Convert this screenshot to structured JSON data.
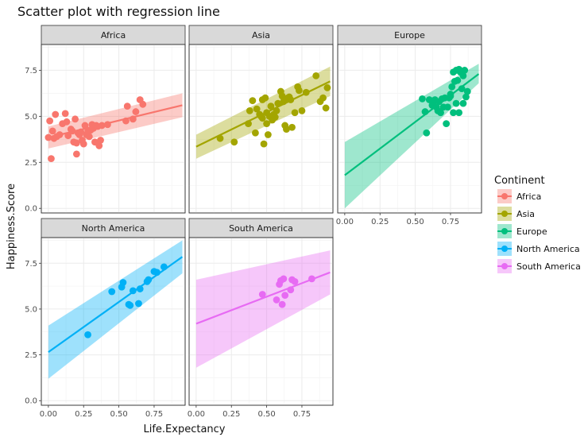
{
  "chart_data": {
    "type": "scatter",
    "title": "Scatter plot with regression line",
    "xlabel": "Life.Expectancy",
    "ylabel": "Happiness.Score",
    "xlim": [
      -0.05,
      0.97
    ],
    "ylim": [
      -0.25,
      8.9
    ],
    "x_ticks": [
      0.0,
      0.25,
      0.5,
      0.75
    ],
    "x_tick_labels": [
      "0.00",
      "0.25",
      "0.50",
      "0.75"
    ],
    "y_ticks": [
      0.0,
      2.5,
      5.0,
      7.5
    ],
    "y_tick_labels": [
      "0.0",
      "2.5",
      "5.0",
      "7.5"
    ],
    "grid": true,
    "legend": {
      "title": "Continent",
      "placement": "right"
    },
    "facets": [
      {
        "name": "Africa",
        "color": "#F8766D",
        "fit": {
          "x": [
            0.0,
            0.95
          ],
          "y": [
            3.85,
            5.6
          ],
          "lower": [
            3.25,
            4.95
          ],
          "upper": [
            4.45,
            6.25
          ]
        },
        "points": [
          [
            0.0,
            3.85
          ],
          [
            0.01,
            4.75
          ],
          [
            0.03,
            4.2
          ],
          [
            0.04,
            3.8
          ],
          [
            0.05,
            5.1
          ],
          [
            0.06,
            3.9
          ],
          [
            0.08,
            4.0
          ],
          [
            0.1,
            4.6
          ],
          [
            0.12,
            5.15
          ],
          [
            0.13,
            4.7
          ],
          [
            0.14,
            3.95
          ],
          [
            0.16,
            4.3
          ],
          [
            0.17,
            4.2
          ],
          [
            0.18,
            3.6
          ],
          [
            0.19,
            4.85
          ],
          [
            0.2,
            3.55
          ],
          [
            0.21,
            4.1
          ],
          [
            0.22,
            4.0
          ],
          [
            0.23,
            4.15
          ],
          [
            0.24,
            3.7
          ],
          [
            0.25,
            3.5
          ],
          [
            0.26,
            4.5
          ],
          [
            0.27,
            4.0
          ],
          [
            0.28,
            4.2
          ],
          [
            0.29,
            3.9
          ],
          [
            0.3,
            4.25
          ],
          [
            0.31,
            4.55
          ],
          [
            0.32,
            4.35
          ],
          [
            0.33,
            3.6
          ],
          [
            0.34,
            4.5
          ],
          [
            0.35,
            4.45
          ],
          [
            0.36,
            3.4
          ],
          [
            0.37,
            3.7
          ],
          [
            0.38,
            4.5
          ],
          [
            0.42,
            4.55
          ],
          [
            0.55,
            4.75
          ],
          [
            0.56,
            5.55
          ],
          [
            0.6,
            4.85
          ],
          [
            0.62,
            5.25
          ],
          [
            0.65,
            5.9
          ],
          [
            0.67,
            5.65
          ],
          [
            0.2,
            2.95
          ],
          [
            0.02,
            2.7
          ]
        ]
      },
      {
        "name": "Asia",
        "color": "#A3A500",
        "fit": {
          "x": [
            0.0,
            0.95
          ],
          "y": [
            3.35,
            6.9
          ],
          "lower": [
            2.7,
            6.1
          ],
          "upper": [
            4.0,
            7.7
          ]
        },
        "points": [
          [
            0.17,
            3.8
          ],
          [
            0.27,
            3.6
          ],
          [
            0.37,
            4.6
          ],
          [
            0.38,
            5.3
          ],
          [
            0.4,
            5.85
          ],
          [
            0.42,
            4.1
          ],
          [
            0.43,
            5.4
          ],
          [
            0.45,
            5.1
          ],
          [
            0.46,
            5.0
          ],
          [
            0.47,
            4.9
          ],
          [
            0.48,
            3.5
          ],
          [
            0.49,
            6.0
          ],
          [
            0.5,
            5.2
          ],
          [
            0.51,
            4.0
          ],
          [
            0.52,
            5.0
          ],
          [
            0.53,
            5.55
          ],
          [
            0.54,
            4.8
          ],
          [
            0.55,
            5.1
          ],
          [
            0.56,
            4.95
          ],
          [
            0.57,
            5.3
          ],
          [
            0.58,
            5.7
          ],
          [
            0.6,
            6.35
          ],
          [
            0.61,
            6.1
          ],
          [
            0.62,
            5.8
          ],
          [
            0.63,
            4.5
          ],
          [
            0.64,
            4.3
          ],
          [
            0.65,
            6.0
          ],
          [
            0.66,
            6.05
          ],
          [
            0.67,
            5.9
          ],
          [
            0.68,
            4.4
          ],
          [
            0.7,
            5.2
          ],
          [
            0.72,
            6.6
          ],
          [
            0.73,
            6.4
          ],
          [
            0.75,
            5.3
          ],
          [
            0.78,
            6.3
          ],
          [
            0.85,
            7.2
          ],
          [
            0.88,
            5.8
          ],
          [
            0.9,
            6.0
          ],
          [
            0.92,
            5.45
          ],
          [
            0.93,
            6.55
          ],
          [
            0.47,
            5.9
          ],
          [
            0.5,
            4.6
          ]
        ]
      },
      {
        "name": "Europe",
        "color": "#00BF7D",
        "fit": {
          "x": [
            0.0,
            0.95
          ],
          "y": [
            1.8,
            7.3
          ],
          "lower": [
            0.0,
            6.8
          ],
          "upper": [
            3.6,
            7.85
          ]
        },
        "points": [
          [
            0.55,
            5.95
          ],
          [
            0.57,
            5.25
          ],
          [
            0.58,
            4.1
          ],
          [
            0.6,
            5.9
          ],
          [
            0.62,
            5.6
          ],
          [
            0.63,
            5.8
          ],
          [
            0.64,
            5.9
          ],
          [
            0.65,
            5.5
          ],
          [
            0.66,
            5.3
          ],
          [
            0.67,
            5.8
          ],
          [
            0.68,
            5.2
          ],
          [
            0.69,
            5.95
          ],
          [
            0.7,
            5.5
          ],
          [
            0.71,
            6.0
          ],
          [
            0.72,
            4.6
          ],
          [
            0.73,
            5.5
          ],
          [
            0.74,
            6.0
          ],
          [
            0.75,
            6.1
          ],
          [
            0.76,
            6.6
          ],
          [
            0.77,
            7.4
          ],
          [
            0.78,
            6.9
          ],
          [
            0.79,
            7.5
          ],
          [
            0.8,
            6.95
          ],
          [
            0.81,
            7.55
          ],
          [
            0.82,
            7.4
          ],
          [
            0.83,
            6.5
          ],
          [
            0.84,
            7.2
          ],
          [
            0.85,
            7.5
          ],
          [
            0.86,
            6.05
          ],
          [
            0.87,
            6.35
          ],
          [
            0.79,
            5.7
          ],
          [
            0.81,
            5.2
          ],
          [
            0.77,
            5.2
          ],
          [
            0.84,
            5.7
          ],
          [
            0.75,
            6.2
          ]
        ]
      },
      {
        "name": "North America",
        "color": "#00B0F6",
        "fit": {
          "x": [
            0.0,
            0.95
          ],
          "y": [
            2.65,
            7.85
          ],
          "lower": [
            1.2,
            6.95
          ],
          "upper": [
            4.1,
            8.75
          ]
        },
        "points": [
          [
            0.28,
            3.6
          ],
          [
            0.45,
            5.95
          ],
          [
            0.52,
            6.2
          ],
          [
            0.53,
            6.45
          ],
          [
            0.57,
            5.25
          ],
          [
            0.58,
            5.2
          ],
          [
            0.6,
            6.0
          ],
          [
            0.64,
            5.3
          ],
          [
            0.65,
            6.1
          ],
          [
            0.7,
            6.5
          ],
          [
            0.71,
            6.6
          ],
          [
            0.75,
            7.05
          ],
          [
            0.77,
            7.0
          ],
          [
            0.82,
            7.3
          ]
        ]
      },
      {
        "name": "South America",
        "color": "#E76BF3",
        "fit": {
          "x": [
            0.0,
            0.95
          ],
          "y": [
            4.2,
            7.0
          ],
          "lower": [
            1.8,
            5.8
          ],
          "upper": [
            6.6,
            8.2
          ]
        },
        "points": [
          [
            0.47,
            5.8
          ],
          [
            0.57,
            5.5
          ],
          [
            0.59,
            6.35
          ],
          [
            0.6,
            6.55
          ],
          [
            0.61,
            5.25
          ],
          [
            0.62,
            6.65
          ],
          [
            0.63,
            5.75
          ],
          [
            0.67,
            6.05
          ],
          [
            0.68,
            6.6
          ],
          [
            0.7,
            6.5
          ],
          [
            0.82,
            6.65
          ]
        ]
      }
    ]
  }
}
